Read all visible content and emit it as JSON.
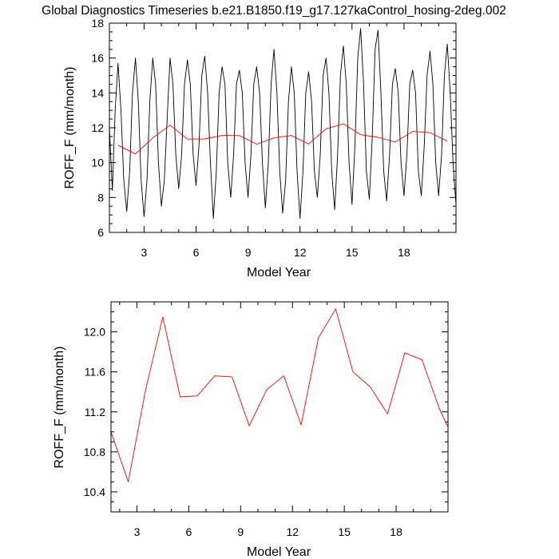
{
  "title": "Global Diagnostics Timeseries b.e21.B1850.f19_g17.127kaControl_hosing-2deg.002",
  "chart_data": [
    {
      "type": "line",
      "xlabel": "Model Year",
      "ylabel": "ROFF_F (mm/month)",
      "xlim": [
        1.0,
        21.0
      ],
      "ylim": [
        6,
        18
      ],
      "xticks": [
        3,
        6,
        9,
        12,
        15,
        18
      ],
      "xtick_labels": [
        "3",
        "6",
        "9",
        "12",
        "15",
        "18"
      ],
      "yticks": [
        6,
        8,
        10,
        12,
        14,
        16,
        18
      ],
      "ytick_labels": [
        "6",
        "8",
        "10",
        "12",
        "14",
        "16",
        "18"
      ],
      "series": [
        {
          "color": "#000000",
          "x": [
            1.0,
            1.17,
            1.33,
            1.5,
            1.67,
            1.83,
            2.0,
            2.17,
            2.33,
            2.5,
            2.67,
            2.83,
            3.0,
            3.17,
            3.33,
            3.5,
            3.67,
            3.83,
            4.0,
            4.17,
            4.33,
            4.5,
            4.67,
            4.83,
            5.0,
            5.17,
            5.33,
            5.5,
            5.67,
            5.83,
            6.0,
            6.17,
            6.33,
            6.5,
            6.67,
            6.83,
            7.0,
            7.17,
            7.33,
            7.5,
            7.67,
            7.83,
            8.0,
            8.17,
            8.33,
            8.5,
            8.67,
            8.83,
            9.0,
            9.17,
            9.33,
            9.5,
            9.67,
            9.83,
            10.0,
            10.17,
            10.33,
            10.5,
            10.67,
            10.83,
            11.0,
            11.17,
            11.33,
            11.5,
            11.67,
            11.83,
            12.0,
            12.17,
            12.33,
            12.5,
            12.67,
            12.83,
            13.0,
            13.17,
            13.33,
            13.5,
            13.67,
            13.83,
            14.0,
            14.17,
            14.33,
            14.5,
            14.67,
            14.83,
            15.0,
            15.17,
            15.33,
            15.5,
            15.67,
            15.83,
            16.0,
            16.17,
            16.33,
            16.5,
            16.67,
            16.83,
            17.0,
            17.17,
            17.33,
            17.5,
            17.67,
            17.83,
            18.0,
            18.17,
            18.33,
            18.5,
            18.67,
            18.83,
            19.0,
            19.17,
            19.33,
            19.5,
            19.67,
            19.83,
            20.0,
            20.17,
            20.33,
            20.5,
            20.67,
            20.83,
            21.0
          ],
          "y": [
            12.0,
            8.4,
            13.0,
            15.7,
            13.0,
            9.0,
            7.2,
            9.5,
            14.0,
            16.0,
            13.5,
            9.0,
            6.9,
            9.0,
            13.5,
            16.0,
            14.5,
            10.0,
            7.5,
            9.0,
            12.5,
            16.0,
            14.5,
            10.5,
            8.5,
            10.5,
            14.5,
            15.9,
            14.5,
            10.5,
            8.7,
            11.0,
            15.0,
            16.1,
            14.0,
            10.0,
            6.8,
            9.5,
            14.0,
            15.5,
            14.5,
            10.0,
            8.0,
            10.5,
            14.5,
            15.3,
            14.0,
            10.0,
            8.0,
            10.5,
            14.5,
            15.5,
            14.0,
            10.0,
            7.4,
            10.0,
            14.5,
            16.5,
            14.0,
            9.5,
            7.1,
            9.0,
            13.5,
            15.5,
            14.0,
            9.5,
            6.8,
            9.5,
            14.0,
            15.2,
            13.5,
            9.5,
            8.0,
            10.5,
            15.0,
            16.0,
            14.0,
            9.5,
            7.3,
            10.5,
            15.0,
            16.7,
            14.5,
            10.0,
            7.6,
            11.0,
            16.0,
            17.7,
            14.5,
            9.5,
            7.9,
            11.5,
            16.5,
            17.6,
            14.0,
            9.5,
            7.8,
            10.5,
            14.5,
            15.4,
            14.0,
            10.0,
            8.1,
            10.5,
            14.5,
            15.3,
            14.0,
            9.5,
            8.1,
            11.0,
            15.0,
            16.4,
            14.5,
            10.0,
            8.1,
            10.5,
            15.0,
            16.8,
            14.0,
            10.0,
            7.6
          ]
        },
        {
          "color": "#ff0000",
          "x": [
            1.5,
            2.5,
            3.5,
            4.5,
            5.5,
            6.5,
            7.5,
            8.5,
            9.5,
            10.5,
            11.5,
            12.5,
            13.5,
            14.5,
            15.5,
            16.5,
            17.5,
            18.5,
            19.5,
            20.5
          ],
          "y": [
            11.0,
            10.5,
            11.42,
            12.15,
            11.35,
            11.36,
            11.56,
            11.55,
            11.06,
            11.42,
            11.56,
            11.07,
            11.94,
            12.23,
            11.6,
            11.45,
            11.18,
            11.79,
            11.72,
            11.23
          ]
        }
      ]
    },
    {
      "type": "line",
      "xlabel": "Model Year",
      "ylabel": "ROFF_F (mm/month)",
      "xlim": [
        1.5,
        21.0
      ],
      "ylim": [
        10.2,
        12.3
      ],
      "xticks": [
        3,
        6,
        9,
        12,
        15,
        18
      ],
      "xtick_labels": [
        "3",
        "6",
        "9",
        "12",
        "15",
        "18"
      ],
      "yticks": [
        10.4,
        10.8,
        11.2,
        11.6,
        12.0
      ],
      "ytick_labels": [
        "10.4",
        "10.8",
        "11.2",
        "11.6",
        "12.0"
      ],
      "series": [
        {
          "color": "#ff0000",
          "x": [
            1.5,
            2.5,
            3.5,
            4.5,
            5.5,
            6.5,
            7.5,
            8.5,
            9.5,
            10.5,
            11.5,
            12.5,
            13.5,
            14.5,
            15.5,
            16.5,
            17.5,
            18.5,
            19.5,
            20.5,
            21.0
          ],
          "y": [
            11.0,
            10.5,
            11.42,
            12.15,
            11.35,
            11.36,
            11.56,
            11.55,
            11.06,
            11.42,
            11.56,
            11.07,
            11.94,
            12.23,
            11.6,
            11.45,
            11.18,
            11.79,
            11.72,
            11.23,
            11.05
          ]
        }
      ]
    }
  ]
}
